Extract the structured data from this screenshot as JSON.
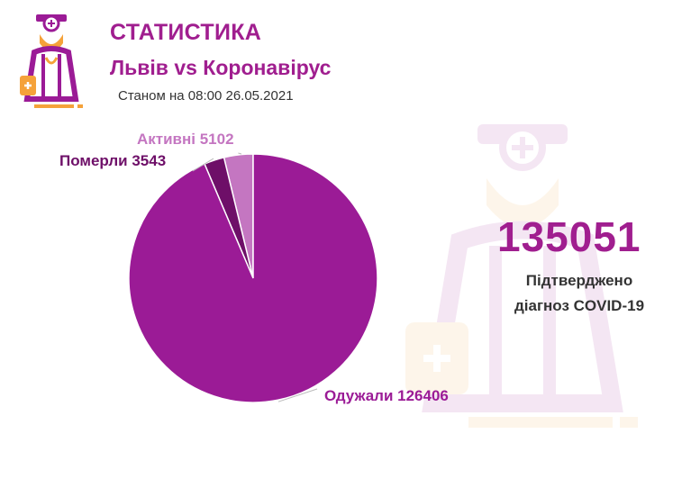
{
  "header": {
    "title": "СТАТИСТИКА",
    "subtitle": "Львів vs Коронавірус",
    "date_line": "Станом на 08:00 26.05.2021"
  },
  "summary": {
    "total": "135051",
    "label_line1": "Підтверджено",
    "label_line2": "діагноз COVID-19"
  },
  "colors": {
    "brand_purple": "#a01e8f",
    "recovered": "#9b1b96",
    "died": "#6e0f68",
    "active": "#c476c1",
    "accent_orange": "#f5a23a"
  },
  "icons": [
    "doctor-logo-icon",
    "doctor-watermark-icon"
  ],
  "chart_data": {
    "type": "pie",
    "title": "",
    "slices": [
      {
        "name": "Активні",
        "value": 5102,
        "label": "Активні 5102",
        "color": "#c476c1"
      },
      {
        "name": "Померли",
        "value": 3543,
        "label": "Померли 3543",
        "color": "#6e0f68"
      },
      {
        "name": "Одужали",
        "value": 126406,
        "label": "Одужали 126406",
        "color": "#9b1b96"
      }
    ],
    "legend": "none",
    "start_angle": "12 o'clock, counter-clockwise"
  }
}
